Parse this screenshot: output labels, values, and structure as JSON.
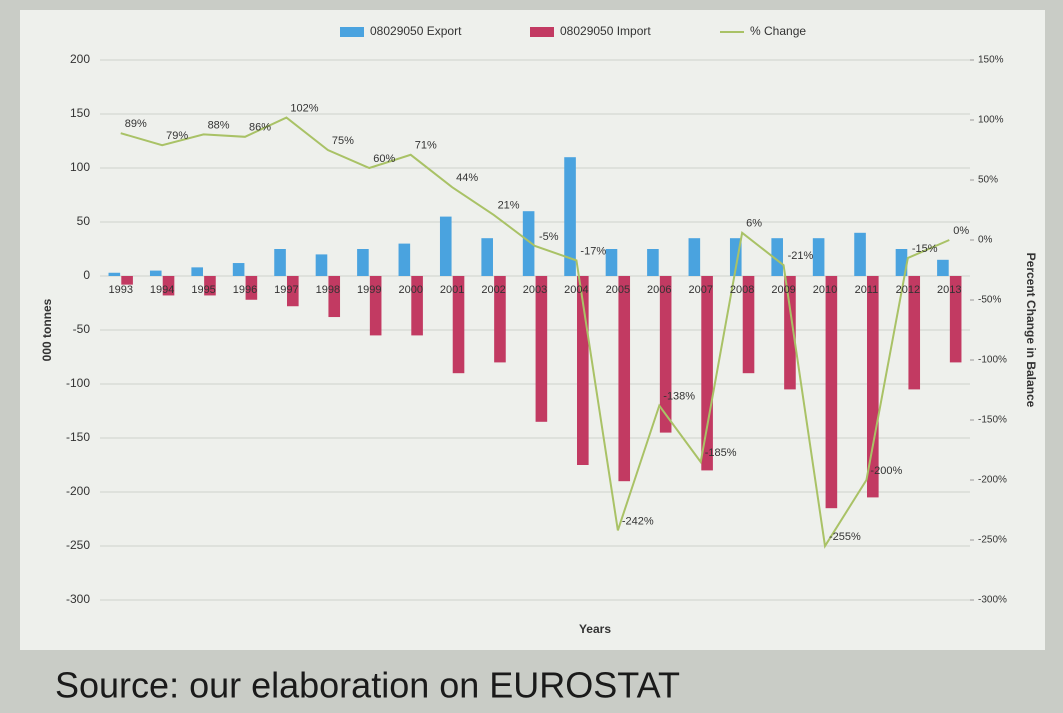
{
  "chart_data": {
    "type": "combo",
    "categories": [
      "1993",
      "1994",
      "1995",
      "1996",
      "1997",
      "1998",
      "1999",
      "2000",
      "2001",
      "2002",
      "2003",
      "2004",
      "2005",
      "2006",
      "2007",
      "2008",
      "2009",
      "2010",
      "2011",
      "2012",
      "2013"
    ],
    "series": [
      {
        "name": "08029050 Export",
        "type": "bar",
        "color": "#4aa3df",
        "values": [
          3,
          5,
          8,
          12,
          25,
          20,
          25,
          30,
          55,
          35,
          60,
          110,
          25,
          25,
          35,
          35,
          35,
          35,
          40,
          25,
          15
        ]
      },
      {
        "name": "08029050 Import",
        "type": "bar",
        "color": "#c23a62",
        "values": [
          -8,
          -18,
          -18,
          -22,
          -28,
          -38,
          -55,
          -55,
          -90,
          -80,
          -135,
          -175,
          -190,
          -145,
          -180,
          -90,
          -105,
          -215,
          -205,
          -105,
          -80
        ]
      },
      {
        "name": "% Change",
        "type": "line",
        "axis": "y2",
        "color": "#a9c266",
        "values": [
          89,
          79,
          88,
          86,
          102,
          75,
          60,
          71,
          44,
          21,
          -5,
          -17,
          -242,
          -138,
          -185,
          6,
          -21,
          -255,
          -200,
          -15,
          0
        ],
        "value_labels": [
          "89%",
          "79%",
          "88%",
          "86%",
          "102%",
          "75%",
          "60%",
          "71%",
          "44%",
          "21%",
          "-5%",
          "-17%",
          "-242%",
          "-138%",
          "-185%",
          "6%",
          "-21%",
          "-255%",
          "-200%",
          "-15%",
          "0%"
        ]
      }
    ],
    "ylim": [
      -300,
      200
    ],
    "yticks": [
      -300,
      -250,
      -200,
      -150,
      -100,
      -50,
      0,
      50,
      100,
      150,
      200
    ],
    "y2lim": [
      -300,
      150
    ],
    "y2ticks": [
      {
        "value": -300,
        "label": "-300%"
      },
      {
        "value": -250,
        "label": "-250%"
      },
      {
        "value": -200,
        "label": "-200%"
      },
      {
        "value": -150,
        "label": "-150%"
      },
      {
        "value": -100,
        "label": "-100%"
      },
      {
        "value": -50,
        "label": "-50%"
      },
      {
        "value": 0,
        "label": "0%"
      },
      {
        "value": 50,
        "label": "50%"
      },
      {
        "value": 100,
        "label": "100%"
      },
      {
        "value": 150,
        "label": "150%"
      }
    ],
    "xlabel": "Years",
    "ylabel": "000 tonnes",
    "y2label": "Percent Change in Balance",
    "grid": true,
    "legend": "top",
    "source": "Source: our elaboration on EUROSTAT"
  }
}
